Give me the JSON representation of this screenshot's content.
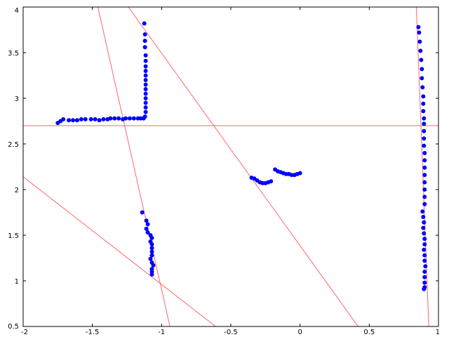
{
  "chart_data": {
    "type": "scatter",
    "title": "",
    "xlabel": "",
    "ylabel": "",
    "xlim": [
      -2,
      1
    ],
    "ylim": [
      0.5,
      4
    ],
    "grid": false,
    "x_ticks": [
      -2,
      -1.5,
      -1,
      -0.5,
      0,
      0.5,
      1
    ],
    "x_tick_labels": [
      "-2",
      "-1.5",
      "-1",
      "-0.5",
      "0",
      "0.5",
      "1"
    ],
    "y_ticks": [
      0.5,
      1,
      1.5,
      2,
      2.5,
      3,
      3.5,
      4
    ],
    "y_tick_labels": [
      "0.5",
      "1",
      "1.5",
      "2",
      "2.5",
      "3",
      "3.5",
      "4"
    ],
    "colors": {
      "points": "#0000ff",
      "lines": "#ff6666",
      "axes": "#000000"
    },
    "series": [
      {
        "type": "scatter",
        "points": [
          [
            -1.75,
            2.73
          ],
          [
            -1.73,
            2.75
          ],
          [
            -1.71,
            2.77
          ],
          [
            -1.67,
            2.76
          ],
          [
            -1.64,
            2.76
          ],
          [
            -1.61,
            2.76
          ],
          [
            -1.58,
            2.77
          ],
          [
            -1.55,
            2.77
          ],
          [
            -1.51,
            2.77
          ],
          [
            -1.48,
            2.77
          ],
          [
            -1.45,
            2.76
          ],
          [
            -1.42,
            2.77
          ],
          [
            -1.39,
            2.77
          ],
          [
            -1.37,
            2.78
          ],
          [
            -1.34,
            2.78
          ],
          [
            -1.31,
            2.78
          ],
          [
            -1.28,
            2.77
          ],
          [
            -1.26,
            2.78
          ],
          [
            -1.23,
            2.78
          ],
          [
            -1.2,
            2.78
          ],
          [
            -1.17,
            2.78
          ],
          [
            -1.15,
            2.78
          ],
          [
            -1.13,
            2.78
          ],
          [
            -1.12,
            2.8
          ],
          [
            -1.115,
            2.85
          ],
          [
            -1.115,
            2.9
          ],
          [
            -1.115,
            2.95
          ],
          [
            -1.115,
            3.0
          ],
          [
            -1.115,
            3.05
          ],
          [
            -1.115,
            3.1
          ],
          [
            -1.115,
            3.15
          ],
          [
            -1.115,
            3.2
          ],
          [
            -1.115,
            3.25
          ],
          [
            -1.115,
            3.3
          ],
          [
            -1.115,
            3.35
          ],
          [
            -1.115,
            3.41
          ],
          [
            -1.115,
            3.47
          ],
          [
            -1.12,
            3.56
          ],
          [
            -1.12,
            3.63
          ],
          [
            -1.12,
            3.7
          ],
          [
            -1.125,
            3.82
          ],
          [
            -1.14,
            1.75
          ],
          [
            -1.11,
            1.66
          ],
          [
            -1.1,
            1.62
          ],
          [
            -1.11,
            1.57
          ],
          [
            -1.1,
            1.53
          ],
          [
            -1.08,
            1.5
          ],
          [
            -1.07,
            1.47
          ],
          [
            -1.08,
            1.43
          ],
          [
            -1.07,
            1.4
          ],
          [
            -1.07,
            1.36
          ],
          [
            -1.07,
            1.32
          ],
          [
            -1.07,
            1.28
          ],
          [
            -1.08,
            1.24
          ],
          [
            -1.07,
            1.2
          ],
          [
            -1.06,
            1.17
          ],
          [
            -1.07,
            1.13
          ],
          [
            -1.07,
            1.1
          ],
          [
            -1.07,
            1.07
          ],
          [
            -0.35,
            2.13
          ],
          [
            -0.33,
            2.12
          ],
          [
            -0.31,
            2.1
          ],
          [
            -0.29,
            2.08
          ],
          [
            -0.27,
            2.07
          ],
          [
            -0.25,
            2.07
          ],
          [
            -0.23,
            2.08
          ],
          [
            -0.21,
            2.09
          ],
          [
            -0.18,
            2.22
          ],
          [
            -0.16,
            2.2
          ],
          [
            -0.14,
            2.19
          ],
          [
            -0.12,
            2.18
          ],
          [
            -0.1,
            2.17
          ],
          [
            -0.08,
            2.17
          ],
          [
            -0.06,
            2.16
          ],
          [
            -0.04,
            2.16
          ],
          [
            -0.02,
            2.17
          ],
          [
            0.0,
            2.18
          ],
          [
            0.855,
            3.78
          ],
          [
            0.86,
            3.72
          ],
          [
            0.865,
            3.62
          ],
          [
            0.87,
            3.52
          ],
          [
            0.875,
            3.42
          ],
          [
            0.88,
            3.32
          ],
          [
            0.88,
            3.22
          ],
          [
            0.885,
            3.12
          ],
          [
            0.89,
            3.02
          ],
          [
            0.89,
            2.94
          ],
          [
            0.89,
            2.86
          ],
          [
            0.895,
            2.78
          ],
          [
            0.895,
            2.72
          ],
          [
            0.895,
            2.64
          ],
          [
            0.895,
            2.56
          ],
          [
            0.895,
            2.48
          ],
          [
            0.9,
            2.4
          ],
          [
            0.9,
            2.32
          ],
          [
            0.9,
            2.24
          ],
          [
            0.9,
            2.16
          ],
          [
            0.9,
            2.08
          ],
          [
            0.9,
            2.0
          ],
          [
            0.9,
            1.92
          ],
          [
            0.9,
            1.84
          ],
          [
            0.885,
            1.76
          ],
          [
            0.89,
            1.7
          ],
          [
            0.895,
            1.64
          ],
          [
            0.89,
            1.58
          ],
          [
            0.895,
            1.52
          ],
          [
            0.9,
            1.46
          ],
          [
            0.9,
            1.4
          ],
          [
            0.895,
            1.34
          ],
          [
            0.9,
            1.28
          ],
          [
            0.9,
            1.22
          ],
          [
            0.905,
            1.16
          ],
          [
            0.9,
            1.1
          ],
          [
            0.9,
            1.04
          ],
          [
            0.9,
            0.98
          ],
          [
            0.9,
            0.93
          ],
          [
            0.895,
            0.91
          ]
        ]
      },
      {
        "type": "line",
        "x": [
          -1.46,
          -0.94
        ],
        "y": [
          4.0,
          0.5
        ]
      },
      {
        "type": "line",
        "x": [
          -1.24,
          0.42
        ],
        "y": [
          4.0,
          0.5
        ]
      },
      {
        "type": "line",
        "x": [
          -2.0,
          1.0
        ],
        "y": [
          2.7,
          2.7
        ]
      },
      {
        "type": "line",
        "x": [
          -2.0,
          -0.61
        ],
        "y": [
          2.14,
          0.5
        ]
      },
      {
        "type": "line",
        "x": [
          0.84,
          0.93
        ],
        "y": [
          4.0,
          0.5
        ]
      }
    ]
  }
}
